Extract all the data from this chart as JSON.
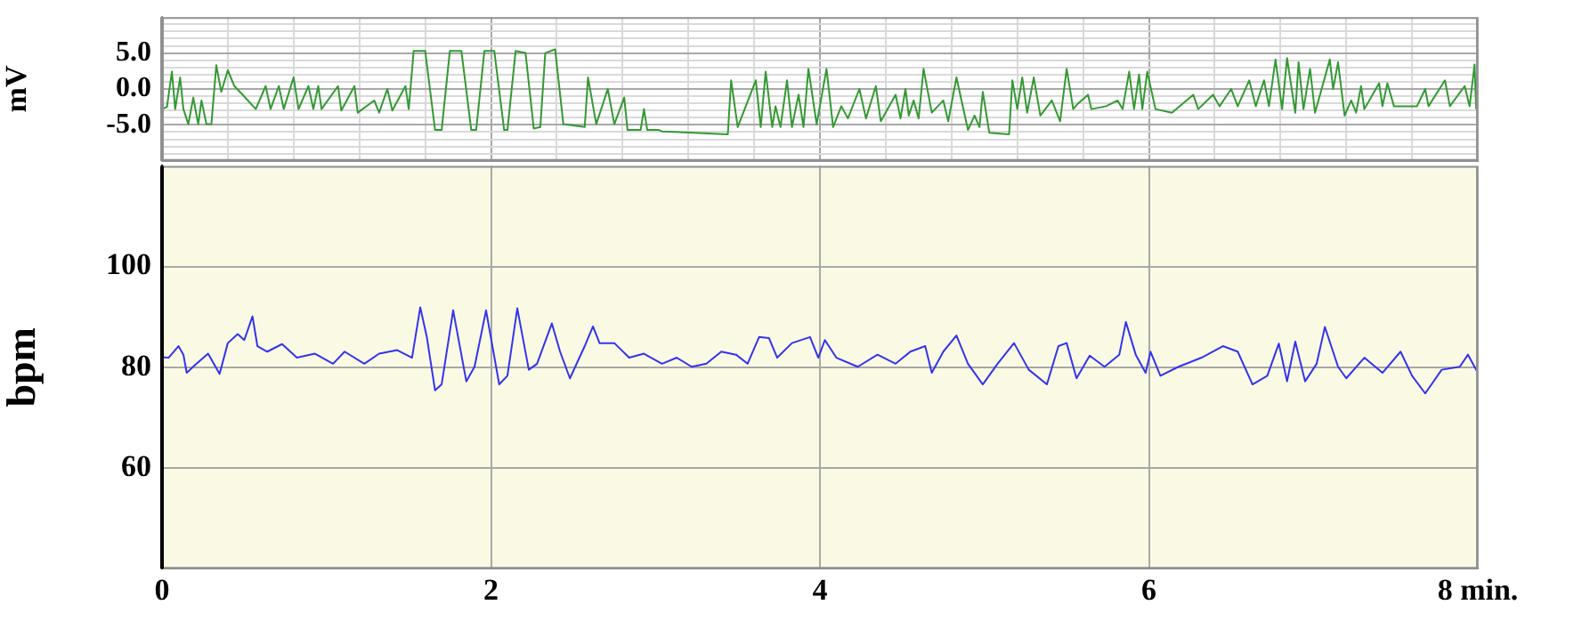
{
  "chart_data": [
    {
      "type": "line",
      "ylabel": "mV",
      "xlim": [
        0,
        8
      ],
      "ylim": [
        -10,
        10
      ],
      "xticks": [
        0,
        {
          "value": 0.4,
          "label": null
        },
        {
          "value": 0.8,
          "label": null
        },
        {
          "value": 1.2,
          "label": null
        },
        {
          "value": 1.6,
          "label": null
        },
        2,
        {
          "value": 2.4,
          "label": null
        },
        {
          "value": 2.8,
          "label": null
        },
        {
          "value": 3.2,
          "label": null
        },
        {
          "value": 3.6,
          "label": null
        },
        4,
        {
          "value": 4.4,
          "label": null
        },
        {
          "value": 4.8,
          "label": null
        },
        {
          "value": 5.2,
          "label": null
        },
        {
          "value": 5.6,
          "label": null
        },
        6,
        {
          "value": 6.4,
          "label": null
        },
        {
          "value": 6.8,
          "label": null
        },
        {
          "value": 7.2,
          "label": null
        },
        {
          "value": 7.6,
          "label": null
        },
        8
      ],
      "yticks": [
        {
          "value": -9,
          "label": null
        },
        {
          "value": -8,
          "label": null
        },
        {
          "value": -7,
          "label": null
        },
        {
          "value": -6,
          "label": null
        },
        {
          "value": -5,
          "label": "-5.0"
        },
        {
          "value": -4,
          "label": null
        },
        {
          "value": -3,
          "label": null
        },
        {
          "value": -2,
          "label": null
        },
        {
          "value": -1,
          "label": null
        },
        {
          "value": 0,
          "label": "0.0"
        },
        {
          "value": 1,
          "label": null
        },
        {
          "value": 2,
          "label": null
        },
        {
          "value": 3,
          "label": null
        },
        {
          "value": 4,
          "label": null
        },
        {
          "value": 5,
          "label": "5.0"
        },
        {
          "value": 6,
          "label": null
        },
        {
          "value": 7,
          "label": null
        },
        {
          "value": 8,
          "label": null
        },
        {
          "value": 9,
          "label": null
        }
      ],
      "tick_labels": "y",
      "grid": true,
      "legend": false,
      "marker": "none",
      "series": [
        {
          "color": "#339933",
          "x": [
            0.0,
            0.03,
            0.06,
            0.08,
            0.11,
            0.13,
            0.16,
            0.19,
            0.22,
            0.24,
            0.27,
            0.3,
            0.33,
            0.36,
            0.4,
            0.44,
            0.49,
            0.57,
            0.63,
            0.66,
            0.71,
            0.74,
            0.8,
            0.83,
            0.89,
            0.92,
            0.95,
            0.97,
            1.07,
            1.09,
            1.17,
            1.19,
            1.29,
            1.32,
            1.37,
            1.4,
            1.48,
            1.5,
            1.53,
            1.6,
            1.66,
            1.7,
            1.75,
            1.82,
            1.88,
            1.91,
            1.96,
            2.02,
            2.08,
            2.1,
            2.15,
            2.21,
            2.26,
            2.3,
            2.33,
            2.39,
            2.44,
            2.57,
            2.59,
            2.64,
            2.71,
            2.75,
            2.81,
            2.83,
            2.91,
            2.93,
            2.95,
            3.02,
            3.04,
            3.44,
            3.46,
            3.5,
            3.61,
            3.64,
            3.67,
            3.71,
            3.73,
            3.76,
            3.8,
            3.83,
            3.87,
            3.9,
            3.93,
            3.98,
            4.04,
            4.08,
            4.13,
            4.17,
            4.24,
            4.28,
            4.34,
            4.37,
            4.46,
            4.49,
            4.52,
            4.54,
            4.57,
            4.6,
            4.63,
            4.68,
            4.75,
            4.78,
            4.83,
            4.9,
            4.94,
            4.97,
            4.99,
            5.03,
            5.15,
            5.17,
            5.2,
            5.23,
            5.26,
            5.3,
            5.34,
            5.41,
            5.46,
            5.5,
            5.54,
            5.57,
            5.63,
            5.65,
            5.74,
            5.81,
            5.84,
            5.88,
            5.91,
            5.94,
            5.96,
            5.99,
            6.04,
            6.14,
            6.27,
            6.3,
            6.39,
            6.43,
            6.5,
            6.54,
            6.61,
            6.65,
            6.7,
            6.73,
            6.77,
            6.81,
            6.84,
            6.89,
            6.91,
            6.94,
            6.98,
            7.01,
            7.1,
            7.12,
            7.15,
            7.19,
            7.23,
            7.26,
            7.29,
            7.31,
            7.4,
            7.42,
            7.45,
            7.49,
            7.63,
            7.68,
            7.7,
            7.8,
            7.83,
            7.92,
            7.95,
            7.98,
            7.99
          ],
          "values": [
            -2.8,
            -2.5,
            2.4,
            -2.8,
            1.6,
            -2.8,
            -4.9,
            -1.2,
            -4.9,
            -1.6,
            -4.9,
            -4.9,
            3.3,
            -0.4,
            2.6,
            0.4,
            -0.8,
            -2.8,
            0.4,
            -2.8,
            0.4,
            -2.8,
            1.6,
            -2.8,
            0.4,
            -2.8,
            0.4,
            -2.8,
            0.4,
            -3.0,
            0.4,
            -3.3,
            -1.6,
            -3.3,
            0.0,
            -3.0,
            0.4,
            -2.8,
            5.3,
            5.3,
            -5.7,
            -5.7,
            5.3,
            5.3,
            -5.7,
            -5.7,
            5.3,
            5.3,
            -5.7,
            -5.7,
            5.3,
            5.0,
            -5.5,
            -5.3,
            5.0,
            5.5,
            -4.9,
            -5.3,
            1.6,
            -4.9,
            0.0,
            -4.9,
            -1.2,
            -5.7,
            -5.7,
            -2.8,
            -5.7,
            -5.7,
            -5.9,
            -6.3,
            1.2,
            -5.3,
            1.2,
            -5.3,
            2.4,
            -5.3,
            -2.4,
            -5.3,
            1.2,
            -5.3,
            -0.8,
            -5.3,
            2.8,
            -4.9,
            2.8,
            -5.3,
            -2.4,
            -4.1,
            0.0,
            -4.1,
            0.4,
            -4.5,
            -0.8,
            -4.1,
            0.0,
            -3.7,
            -1.6,
            -4.1,
            2.8,
            -3.3,
            -1.6,
            -4.5,
            1.6,
            -5.7,
            -3.7,
            -5.3,
            -0.4,
            -6.1,
            -6.3,
            1.2,
            -2.8,
            1.6,
            -3.3,
            1.6,
            -3.7,
            -1.6,
            -4.5,
            2.8,
            -2.8,
            -2.0,
            -0.8,
            -2.8,
            -2.4,
            -1.6,
            -2.8,
            2.4,
            -2.8,
            2.0,
            -2.8,
            2.4,
            -2.8,
            -3.3,
            -0.8,
            -2.8,
            -0.8,
            -2.4,
            0.0,
            -2.4,
            1.2,
            -2.4,
            1.2,
            -2.4,
            4.1,
            -2.8,
            4.3,
            -3.3,
            3.7,
            -2.8,
            2.8,
            -3.3,
            4.1,
            0.0,
            3.7,
            -3.7,
            -1.6,
            -3.3,
            0.4,
            -2.8,
            0.8,
            -2.4,
            0.8,
            -2.4,
            -2.4,
            0.0,
            -2.4,
            1.2,
            -2.4,
            0.4,
            -2.4,
            3.4,
            -2.8
          ]
        }
      ]
    },
    {
      "type": "line",
      "ylabel": "bpm",
      "xlim": [
        0,
        8
      ],
      "ylim": [
        40,
        120
      ],
      "xticks": [
        0,
        2,
        4,
        6,
        {
          "value": 8,
          "label": "8 min."
        }
      ],
      "yticks": [
        60,
        80,
        100
      ],
      "grid": true,
      "legend": false,
      "marker": "none",
      "series": [
        {
          "color": "#3333ee",
          "x": [
            0.0,
            0.04,
            0.1,
            0.13,
            0.15,
            0.21,
            0.28,
            0.35,
            0.4,
            0.46,
            0.5,
            0.55,
            0.58,
            0.64,
            0.73,
            0.82,
            0.93,
            1.04,
            1.11,
            1.23,
            1.32,
            1.43,
            1.52,
            1.57,
            1.61,
            1.66,
            1.7,
            1.77,
            1.85,
            1.9,
            1.97,
            2.05,
            2.1,
            2.16,
            2.23,
            2.28,
            2.37,
            2.42,
            2.48,
            2.57,
            2.62,
            2.66,
            2.75,
            2.84,
            2.93,
            3.04,
            3.13,
            3.22,
            3.31,
            3.4,
            3.49,
            3.56,
            3.63,
            3.69,
            3.74,
            3.83,
            3.94,
            3.99,
            4.03,
            4.1,
            4.23,
            4.35,
            4.46,
            4.55,
            4.64,
            4.68,
            4.75,
            4.83,
            4.9,
            4.99,
            5.08,
            5.18,
            5.27,
            5.38,
            5.45,
            5.5,
            5.56,
            5.64,
            5.73,
            5.82,
            5.86,
            5.92,
            5.98,
            6.01,
            6.07,
            6.18,
            6.32,
            6.45,
            6.54,
            6.63,
            6.72,
            6.79,
            6.84,
            6.89,
            6.95,
            7.02,
            7.07,
            7.15,
            7.2,
            7.31,
            7.42,
            7.53,
            7.6,
            7.68,
            7.78,
            7.89,
            7.94,
            8.0
          ],
          "values": [
            82,
            81.9,
            84.2,
            82.5,
            78.9,
            80.7,
            82.7,
            78.7,
            84.8,
            86.6,
            85.4,
            90.1,
            84.2,
            83.1,
            84.6,
            81.9,
            82.7,
            80.7,
            83.1,
            80.7,
            82.7,
            83.4,
            81.9,
            91.9,
            86.0,
            75.4,
            76.6,
            91.3,
            77.2,
            80.1,
            91.3,
            76.6,
            78.3,
            91.7,
            79.5,
            80.7,
            88.7,
            83.1,
            77.8,
            84.2,
            88.1,
            84.8,
            84.8,
            81.9,
            82.7,
            80.7,
            81.9,
            80.1,
            80.7,
            83.1,
            82.5,
            80.7,
            86.0,
            85.8,
            81.9,
            84.8,
            86.0,
            81.9,
            85.4,
            81.9,
            80.1,
            82.5,
            80.7,
            83.1,
            84.2,
            78.9,
            83.1,
            86.3,
            80.7,
            76.6,
            80.7,
            84.8,
            79.5,
            76.6,
            84.2,
            84.8,
            77.8,
            82.3,
            80.1,
            82.5,
            89.0,
            82.5,
            78.9,
            83.1,
            78.3,
            80.1,
            81.9,
            84.2,
            83.1,
            76.6,
            78.3,
            84.7,
            77.2,
            85.1,
            77.2,
            80.7,
            88.0,
            80.1,
            77.8,
            81.9,
            78.9,
            83.1,
            78.3,
            74.8,
            79.5,
            80.1,
            82.5,
            78.9
          ]
        }
      ]
    }
  ]
}
